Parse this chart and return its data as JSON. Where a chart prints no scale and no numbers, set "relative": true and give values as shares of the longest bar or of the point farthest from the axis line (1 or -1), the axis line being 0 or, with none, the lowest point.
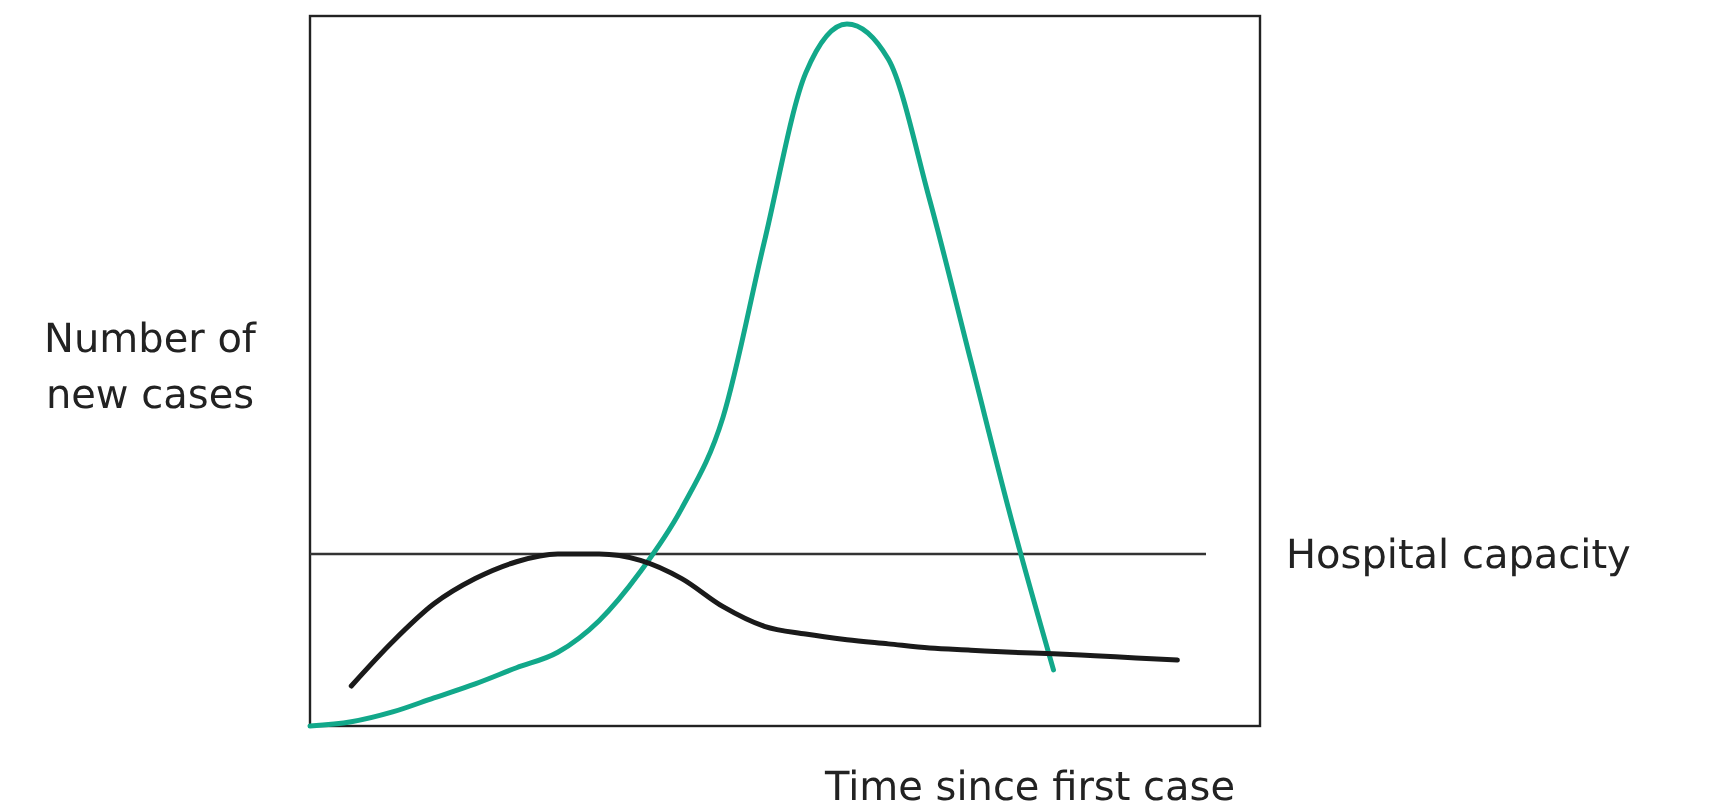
{
  "chart_data": {
    "type": "line",
    "relative": true,
    "xlabel": "Time since first case",
    "ylabel": "Number of\nnew cases",
    "categories": [
      null,
      null,
      null,
      null,
      null,
      null,
      null,
      null,
      null,
      null,
      null,
      null,
      null,
      null,
      null,
      null,
      null,
      null,
      null,
      null,
      null,
      null,
      null,
      null
    ],
    "series": [
      {
        "color": "#12a88a",
        "values": [
          0,
          0.006,
          0.02,
          0.04,
          0.06,
          0.083,
          0.105,
          0.15,
          0.22,
          0.31,
          0.44,
          0.69,
          0.93,
          1,
          0.95,
          0.75,
          0.52,
          0.29,
          0.08,
          null,
          null,
          null,
          null,
          null
        ]
      },
      {
        "color": "#1a1a1a",
        "values": [
          null,
          0.057,
          0.12,
          0.174,
          0.21,
          0.234,
          0.245,
          0.245,
          0.236,
          0.21,
          0.17,
          0.142,
          0.131,
          0.123,
          0.117,
          0.111,
          0.108,
          0.105,
          0.103,
          0.1,
          0.097,
          0.094,
          null,
          null
        ]
      }
    ],
    "ref_lines": [
      {
        "axis": "y",
        "value": 0.245,
        "label": "Hospital capacity",
        "color": "#333333"
      }
    ],
    "grid": false,
    "marker": "none",
    "line_style": "solid"
  }
}
